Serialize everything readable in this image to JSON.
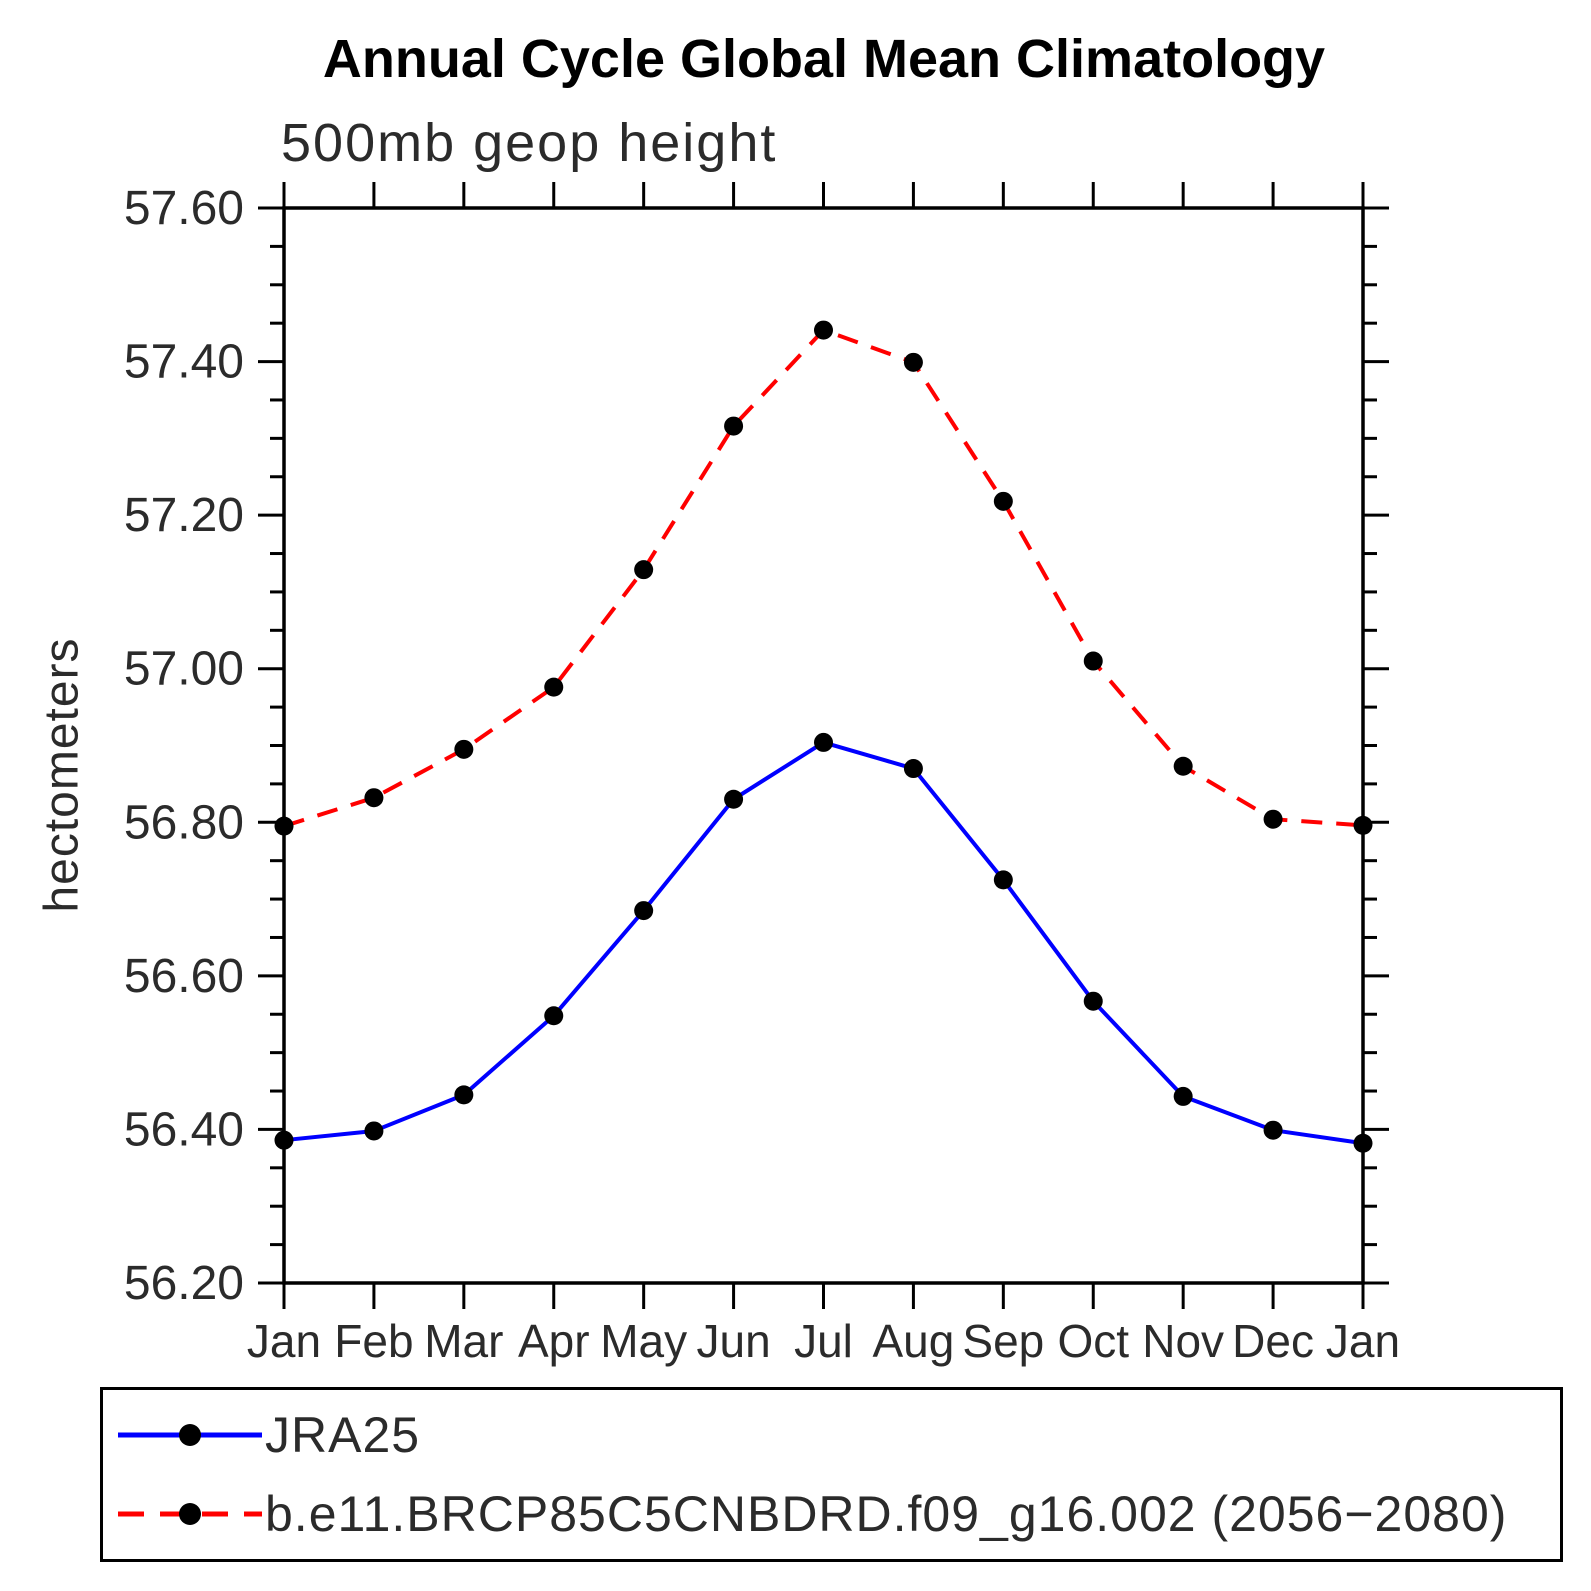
{
  "chart_data": {
    "type": "line",
    "title": "Annual Cycle Global Mean Climatology",
    "subtitle": "500mb geop height",
    "ylabel": "hectometers",
    "xlabel": "",
    "categories": [
      "Jan",
      "Feb",
      "Mar",
      "Apr",
      "May",
      "Jun",
      "Jul",
      "Aug",
      "Sep",
      "Oct",
      "Nov",
      "Dec",
      "Jan"
    ],
    "series": [
      {
        "name": "JRA25",
        "color": "#0000ff",
        "line_style": "solid",
        "marker": "filled-circle",
        "marker_color": "#000000",
        "values": [
          56.386,
          56.398,
          56.445,
          56.548,
          56.685,
          56.83,
          56.904,
          56.87,
          56.725,
          56.567,
          56.443,
          56.399,
          56.382
        ]
      },
      {
        "name": "b.e11.BRCP85C5CNBDRD.f09_g16.002 (2056−2080)",
        "color": "#ff0000",
        "line_style": "dashed",
        "marker": "filled-circle",
        "marker_color": "#000000",
        "values": [
          56.795,
          56.832,
          56.895,
          56.976,
          57.129,
          57.316,
          57.441,
          57.399,
          57.218,
          57.01,
          56.873,
          56.804,
          56.796
        ]
      }
    ],
    "ylim": [
      56.2,
      57.6
    ],
    "y_major_step": 0.2,
    "y_minor_step": 0.05,
    "y_tick_labels": [
      "56.20",
      "56.40",
      "56.60",
      "56.80",
      "57.00",
      "57.20",
      "57.40",
      "57.60"
    ],
    "grid": false,
    "legend_position": "bottom-left-box",
    "axis_color": "#000000",
    "background_color": "#ffffff"
  }
}
